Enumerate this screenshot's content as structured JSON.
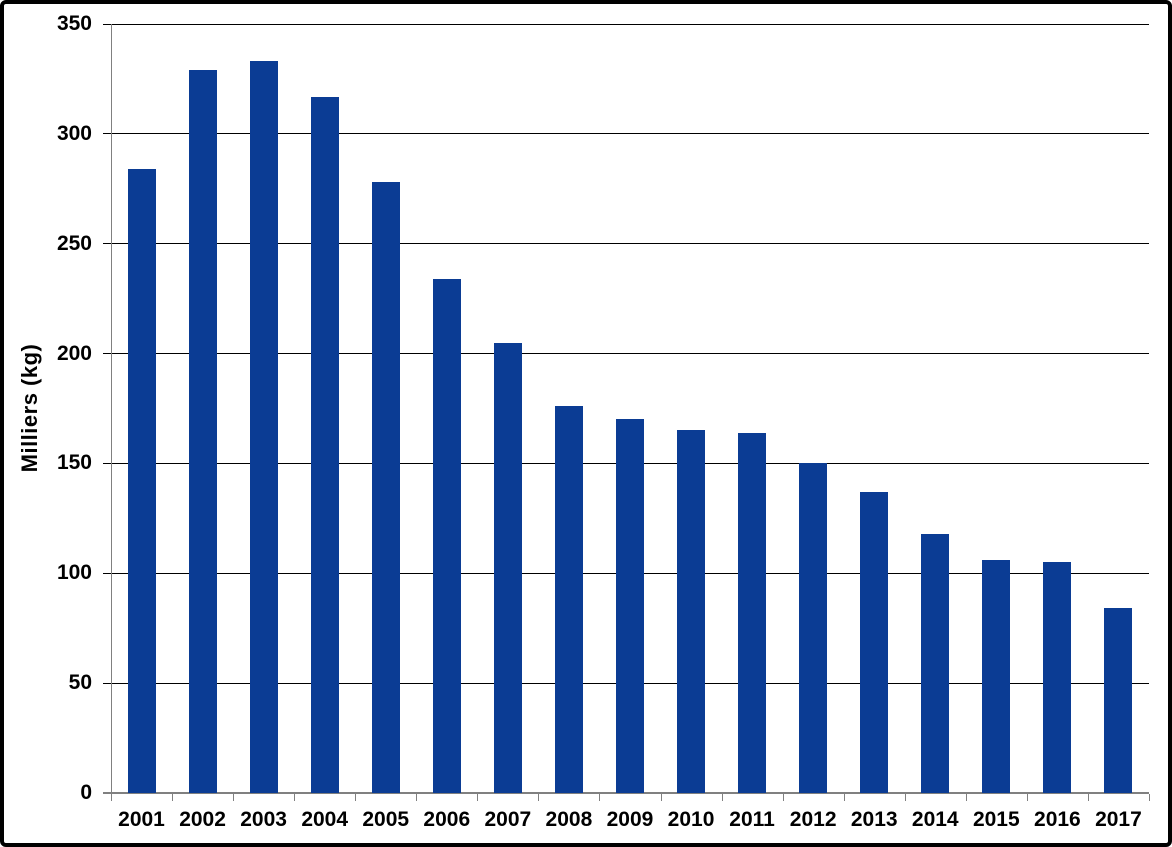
{
  "chart_data": {
    "type": "bar",
    "title": "",
    "xlabel": "",
    "ylabel": "Milliers (kg)",
    "categories": [
      "2001",
      "2002",
      "2003",
      "2004",
      "2005",
      "2006",
      "2007",
      "2008",
      "2009",
      "2010",
      "2011",
      "2012",
      "2013",
      "2014",
      "2015",
      "2016",
      "2017"
    ],
    "values": [
      284,
      329,
      333,
      317,
      278,
      234,
      205,
      176,
      170,
      165,
      164,
      150,
      137,
      118,
      106,
      105,
      84
    ],
    "ylim": [
      0,
      350
    ],
    "yticks": [
      0,
      50,
      100,
      150,
      200,
      250,
      300,
      350
    ],
    "grid": "horizontal",
    "legend_position": "none",
    "colors": {
      "bar": "#0B3C94",
      "gridline": "#000000",
      "axis": "#808080",
      "text": "#000000",
      "background": "#FFFFFF",
      "frame_border": "#000000"
    }
  }
}
